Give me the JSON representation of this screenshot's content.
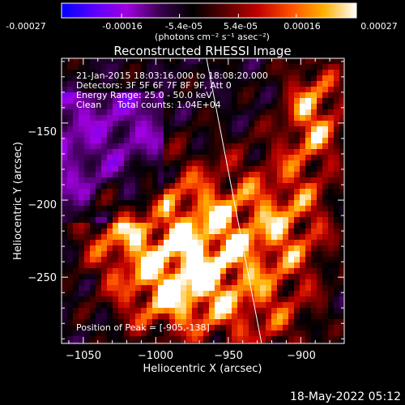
{
  "colorbar": {
    "ticks": [
      "-0.00027",
      "-0.00016",
      "-5.4e-05",
      "5.4e-05",
      "0.00016",
      "0.00027"
    ],
    "unit_text": "(photons cm⁻² s⁻¹ asec⁻²)",
    "range": [
      -0.00027,
      0.00027
    ],
    "colors": [
      "#0000ff",
      "#5a00ff",
      "#a000e0",
      "#3a0050",
      "#000000",
      "#5a0000",
      "#c00000",
      "#ff5000",
      "#ffb000",
      "#ffffff"
    ]
  },
  "chart_data": {
    "type": "heatmap",
    "title": "Reconstructed RHESSI Image",
    "xlabel": "Heliocentric X (arcsec)",
    "ylabel": "Heliocentric Y (arcsec)",
    "xlim": [
      -1065,
      -870
    ],
    "ylim": [
      -293,
      -108
    ],
    "x_ticks": [
      -1050,
      -1000,
      -950,
      -900
    ],
    "y_ticks": [
      -150,
      -200,
      -250
    ],
    "x_tick_labels": [
      "−1050",
      "−1000",
      "−950",
      "−900"
    ],
    "y_tick_labels": [
      "−150",
      "−200",
      "−250"
    ],
    "limb_line": [
      [
        -965,
        -108
      ],
      [
        -927,
        -293
      ]
    ],
    "peak": [
      -905,
      -138
    ],
    "annotations": [
      "21-Jan-2015 18:03:16.000 to 18:08:20.000",
      "Detectors: 3F 5F 6F 7F 8F 9F, Att 0",
      "Energy Range: 25.0 - 50.0 keV",
      "Clean",
      "Total counts: 1.04E+04"
    ],
    "peak_label": "Position of Peak = [-905,-138]"
  },
  "footer": {
    "timestamp": "18-May-2022 05:12"
  }
}
